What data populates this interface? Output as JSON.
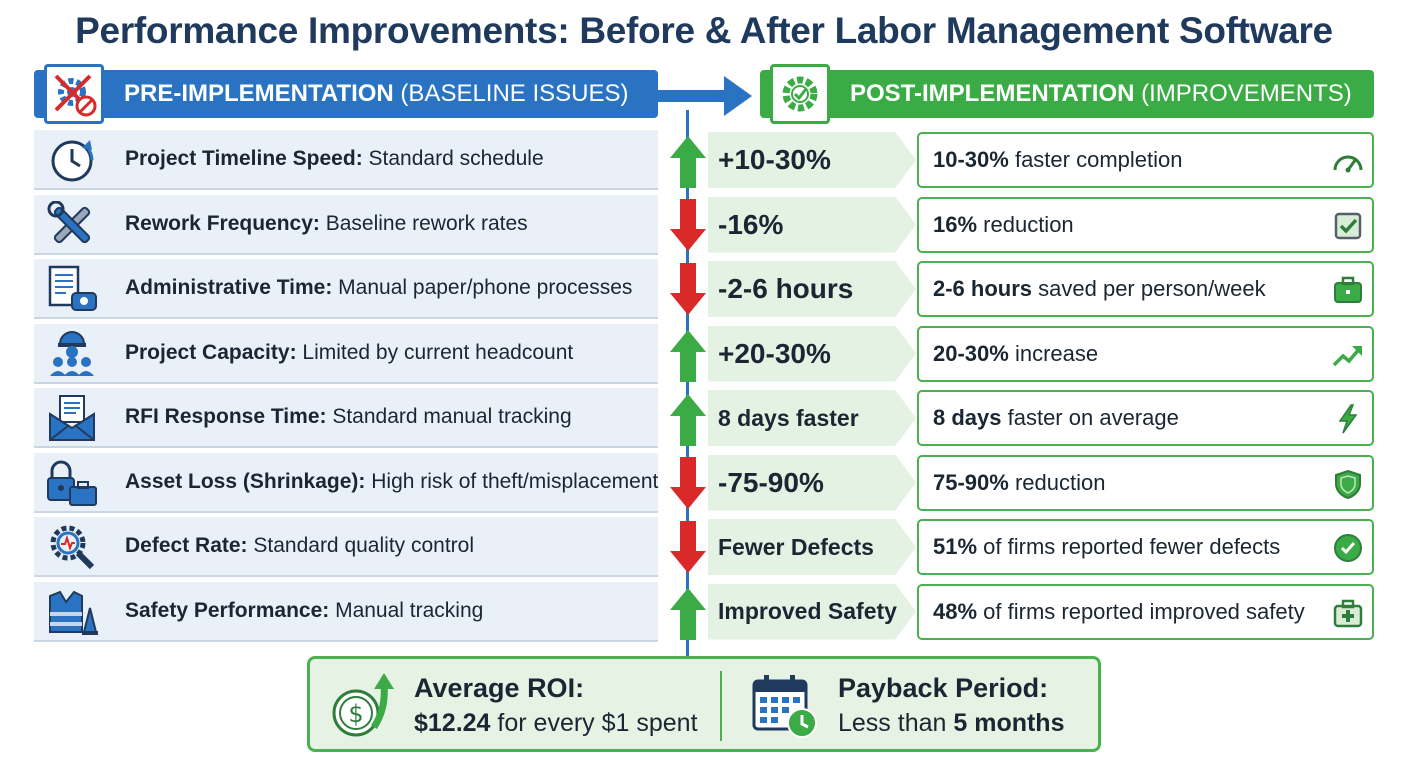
{
  "title": "Performance Improvements: Before & After Labor Management Software",
  "pre_header": {
    "bold": "PRE-IMPLEMENTATION",
    "rest": " (BASELINE ISSUES)",
    "icon": "cross-gear-icon"
  },
  "post_header": {
    "bold": "POST-IMPLEMENTATION",
    "rest": " (IMPROVEMENTS)",
    "icon": "check-gear-icon"
  },
  "colors": {
    "blue": "#2a73c2",
    "green": "#3aab45",
    "red": "#d92a2a",
    "pre_bg": "#e9f0f8",
    "change_bg": "#e3f2e2"
  },
  "rows": [
    {
      "pre_bold": "Project Timeline Speed:",
      "pre_rest": " Standard schedule",
      "pre_icon": "clock-icon",
      "direction": "up",
      "change": "+10-30%",
      "post_bold": "10-30%",
      "post_rest": " faster completion",
      "post_icon": "speedometer-icon"
    },
    {
      "pre_bold": "Rework Frequency:",
      "pre_rest": " Baseline rework rates",
      "pre_icon": "tools-icon",
      "direction": "down",
      "change": "-16%",
      "post_bold": "16%",
      "post_rest": " reduction",
      "post_icon": "checkbox-icon"
    },
    {
      "pre_bold": "Administrative Time:",
      "pre_rest": " Manual paper/phone processes",
      "pre_icon": "document-phone-icon",
      "direction": "down",
      "change": "-2-6 hours",
      "post_bold": "2-6 hours",
      "post_rest": " saved per person/week",
      "post_icon": "briefcase-icon"
    },
    {
      "pre_bold": "Project Capacity:",
      "pre_rest": " Limited by current headcount",
      "pre_icon": "workers-icon",
      "direction": "up",
      "change": "+20-30%",
      "post_bold": "20-30%",
      "post_rest": " increase",
      "post_icon": "trend-up-icon"
    },
    {
      "pre_bold": "RFI Response Time:",
      "pre_rest": " Standard manual tracking",
      "pre_icon": "envelope-icon",
      "direction": "up",
      "change": "8 days faster",
      "post_bold": "8 days",
      "post_rest": " faster on average",
      "post_icon": "lightning-icon"
    },
    {
      "pre_bold": "Asset Loss (Shrinkage):",
      "pre_rest": " High risk of theft/misplacement",
      "pre_icon": "lock-toolbox-icon",
      "direction": "down",
      "change": "-75-90%",
      "post_bold": "75-90%",
      "post_rest": " reduction",
      "post_icon": "shield-icon"
    },
    {
      "pre_bold": "Defect Rate:",
      "pre_rest": " Standard quality control",
      "pre_icon": "gear-magnifier-icon",
      "direction": "down",
      "change": "Fewer Defects",
      "post_bold": "51%",
      "post_rest": " of firms reported fewer defects",
      "post_icon": "check-circle-icon"
    },
    {
      "pre_bold": "Safety Performance:",
      "pre_rest": " Manual tracking",
      "pre_icon": "vest-cone-icon",
      "direction": "up",
      "change": "Improved Safety",
      "post_bold": "48%",
      "post_rest": " of firms reported improved safety",
      "post_icon": "first-aid-icon"
    }
  ],
  "summary": {
    "roi_label": "Average ROI:",
    "roi_bold": "$12.24",
    "roi_rest": " for every $1 spent",
    "roi_icon": "dollar-growth-icon",
    "payback_label": "Payback Period:",
    "payback_rest": "Less than ",
    "payback_bold": "5 months",
    "payback_icon": "calendar-clock-icon"
  }
}
